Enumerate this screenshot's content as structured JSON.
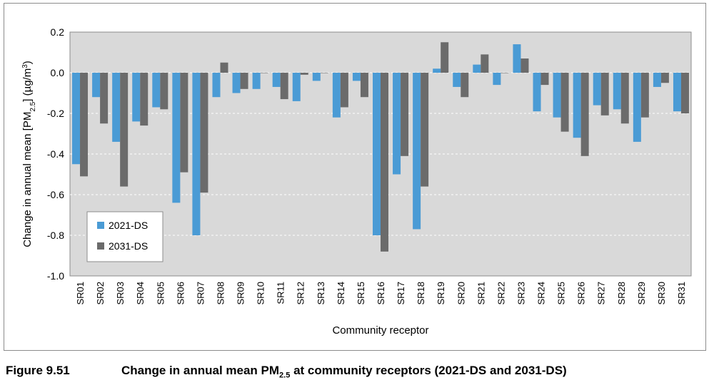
{
  "caption": {
    "number": "Figure 9.51",
    "text_before": "Change in annual mean PM",
    "text_sub": "2.5",
    "text_after": " at community receptors (2021-DS and 2031-DS)"
  },
  "chart_data": {
    "type": "bar",
    "title": "",
    "xlabel": "Community receptor",
    "ylabel": "Change in annual mean [PM2.5] (µg/m3)",
    "ylim": [
      -1.0,
      0.2
    ],
    "yticks": [
      "0.2",
      "0.0",
      "-0.2",
      "-0.4",
      "-0.6",
      "-0.8",
      "-1.0"
    ],
    "ytick_values": [
      0.2,
      0.0,
      -0.2,
      -0.4,
      -0.6,
      -0.8,
      -1.0
    ],
    "grid": "horizontal dashed",
    "legend": "bottom-left",
    "categories": [
      "SR01",
      "SR02",
      "SR03",
      "SR04",
      "SR05",
      "SR06",
      "SR07",
      "SR08",
      "SR09",
      "SR10",
      "SR11",
      "SR12",
      "SR13",
      "SR14",
      "SR15",
      "SR16",
      "SR17",
      "SR18",
      "SR19",
      "SR20",
      "SR21",
      "SR22",
      "SR23",
      "SR24",
      "SR25",
      "SR26",
      "SR27",
      "SR28",
      "SR29",
      "SR30",
      "SR31"
    ],
    "series": [
      {
        "name": "2021-DS",
        "color": "#4a9bd5",
        "values": [
          -0.45,
          -0.12,
          -0.34,
          -0.24,
          -0.17,
          -0.64,
          -0.8,
          -0.12,
          -0.1,
          -0.08,
          -0.07,
          -0.14,
          -0.04,
          -0.22,
          -0.04,
          -0.8,
          -0.5,
          -0.77,
          0.02,
          -0.07,
          0.04,
          -0.06,
          0.14,
          -0.19,
          -0.22,
          -0.32,
          -0.16,
          -0.18,
          -0.34,
          -0.07,
          -0.19
        ]
      },
      {
        "name": "2031-DS",
        "color": "#6b6b6b",
        "values": [
          -0.51,
          -0.25,
          -0.56,
          -0.26,
          -0.18,
          -0.49,
          -0.59,
          0.05,
          -0.08,
          0.0,
          -0.13,
          -0.01,
          0.0,
          -0.17,
          -0.12,
          -0.88,
          -0.41,
          -0.56,
          0.15,
          -0.12,
          0.09,
          0.0,
          0.07,
          -0.06,
          -0.29,
          -0.41,
          -0.21,
          -0.25,
          -0.22,
          -0.05,
          -0.2
        ]
      }
    ]
  }
}
